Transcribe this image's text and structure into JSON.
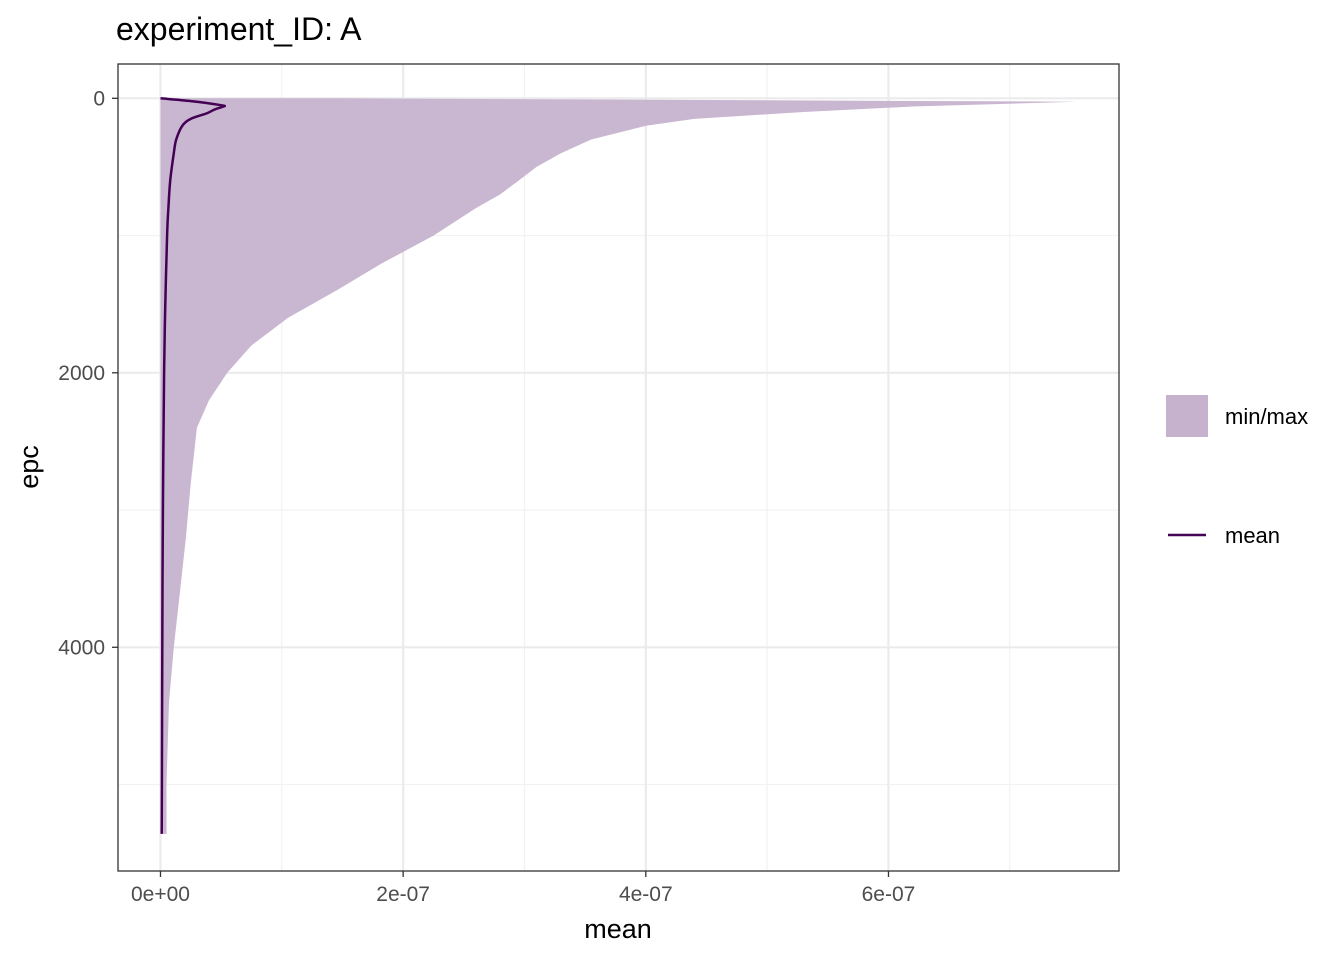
{
  "chart_data": {
    "type": "area",
    "title": "experiment_ID: A",
    "xlabel": "mean",
    "ylabel": "epc",
    "xlim": [
      -3.5e-08,
      7.9e-07
    ],
    "ylim": [
      5630,
      -250
    ],
    "y_reversed": true,
    "x_ticks": [
      {
        "value": 0,
        "label": "0e+00"
      },
      {
        "value": 2e-07,
        "label": "2e-07"
      },
      {
        "value": 4e-07,
        "label": "4e-07"
      },
      {
        "value": 6e-07,
        "label": "6e-07"
      }
    ],
    "y_ticks": [
      {
        "value": 0,
        "label": "0"
      },
      {
        "value": 2000,
        "label": "2000"
      },
      {
        "value": 4000,
        "label": "4000"
      }
    ],
    "x_minor_gridlines": [
      1e-07,
      3e-07,
      5e-07,
      7e-07
    ],
    "y_minor_gridlines": [
      1000,
      3000,
      5000
    ],
    "grid": true,
    "legend_position": "right",
    "colors": {
      "ribbon_fill": "#c6b2cd",
      "mean_line": "#440154",
      "grid_major": "#ebebeb",
      "grid_minor": "#f2f2f2",
      "panel_border": "#333333",
      "tick_text": "#4d4d4d"
    },
    "series": [
      {
        "name": "min/max",
        "kind": "ribbon",
        "points": [
          {
            "epc": 0,
            "min": 0,
            "max": 1.5e-07
          },
          {
            "epc": 25,
            "min": 0,
            "max": 7.55e-07
          },
          {
            "epc": 60,
            "min": 0,
            "max": 6.2e-07
          },
          {
            "epc": 100,
            "min": 0,
            "max": 5.3e-07
          },
          {
            "epc": 150,
            "min": 0,
            "max": 4.4e-07
          },
          {
            "epc": 200,
            "min": 0,
            "max": 4e-07
          },
          {
            "epc": 300,
            "min": 0,
            "max": 3.55e-07
          },
          {
            "epc": 400,
            "min": 0,
            "max": 3.3e-07
          },
          {
            "epc": 500,
            "min": 0,
            "max": 3.1e-07
          },
          {
            "epc": 600,
            "min": 0,
            "max": 2.95e-07
          },
          {
            "epc": 700,
            "min": 0,
            "max": 2.8e-07
          },
          {
            "epc": 800,
            "min": 0,
            "max": 2.6e-07
          },
          {
            "epc": 1000,
            "min": 0,
            "max": 2.25e-07
          },
          {
            "epc": 1200,
            "min": 0,
            "max": 1.83e-07
          },
          {
            "epc": 1400,
            "min": 0,
            "max": 1.45e-07
          },
          {
            "epc": 1600,
            "min": 0,
            "max": 1.05e-07
          },
          {
            "epc": 1800,
            "min": 0,
            "max": 7.5e-08
          },
          {
            "epc": 2000,
            "min": 0,
            "max": 5.5e-08
          },
          {
            "epc": 2200,
            "min": 0,
            "max": 4e-08
          },
          {
            "epc": 2400,
            "min": 0,
            "max": 3e-08
          },
          {
            "epc": 2800,
            "min": 0,
            "max": 2.5e-08
          },
          {
            "epc": 3200,
            "min": 0,
            "max": 2.1e-08
          },
          {
            "epc": 3600,
            "min": 0,
            "max": 1.6e-08
          },
          {
            "epc": 4000,
            "min": 0,
            "max": 1.1e-08
          },
          {
            "epc": 4400,
            "min": 0,
            "max": 7e-09
          },
          {
            "epc": 5000,
            "min": 0,
            "max": 5e-09
          },
          {
            "epc": 5360,
            "min": 0,
            "max": 5e-09
          }
        ]
      },
      {
        "name": "mean",
        "kind": "line",
        "points": [
          {
            "epc": 0,
            "value": 0
          },
          {
            "epc": 20,
            "value": 2.5e-08
          },
          {
            "epc": 50,
            "value": 5e-08
          },
          {
            "epc": 60,
            "value": 5.2e-08
          },
          {
            "epc": 80,
            "value": 4.5e-08
          },
          {
            "epc": 110,
            "value": 3.8e-08
          },
          {
            "epc": 150,
            "value": 2.5e-08
          },
          {
            "epc": 200,
            "value": 1.8e-08
          },
          {
            "epc": 300,
            "value": 1.3e-08
          },
          {
            "epc": 400,
            "value": 1.1e-08
          },
          {
            "epc": 600,
            "value": 8e-09
          },
          {
            "epc": 800,
            "value": 6.5e-09
          },
          {
            "epc": 1000,
            "value": 5.5e-09
          },
          {
            "epc": 1500,
            "value": 4e-09
          },
          {
            "epc": 2000,
            "value": 3e-09
          },
          {
            "epc": 3000,
            "value": 2e-09
          },
          {
            "epc": 4000,
            "value": 1.5e-09
          },
          {
            "epc": 5000,
            "value": 1.2e-09
          },
          {
            "epc": 5360,
            "value": 1e-09
          }
        ]
      }
    ]
  }
}
